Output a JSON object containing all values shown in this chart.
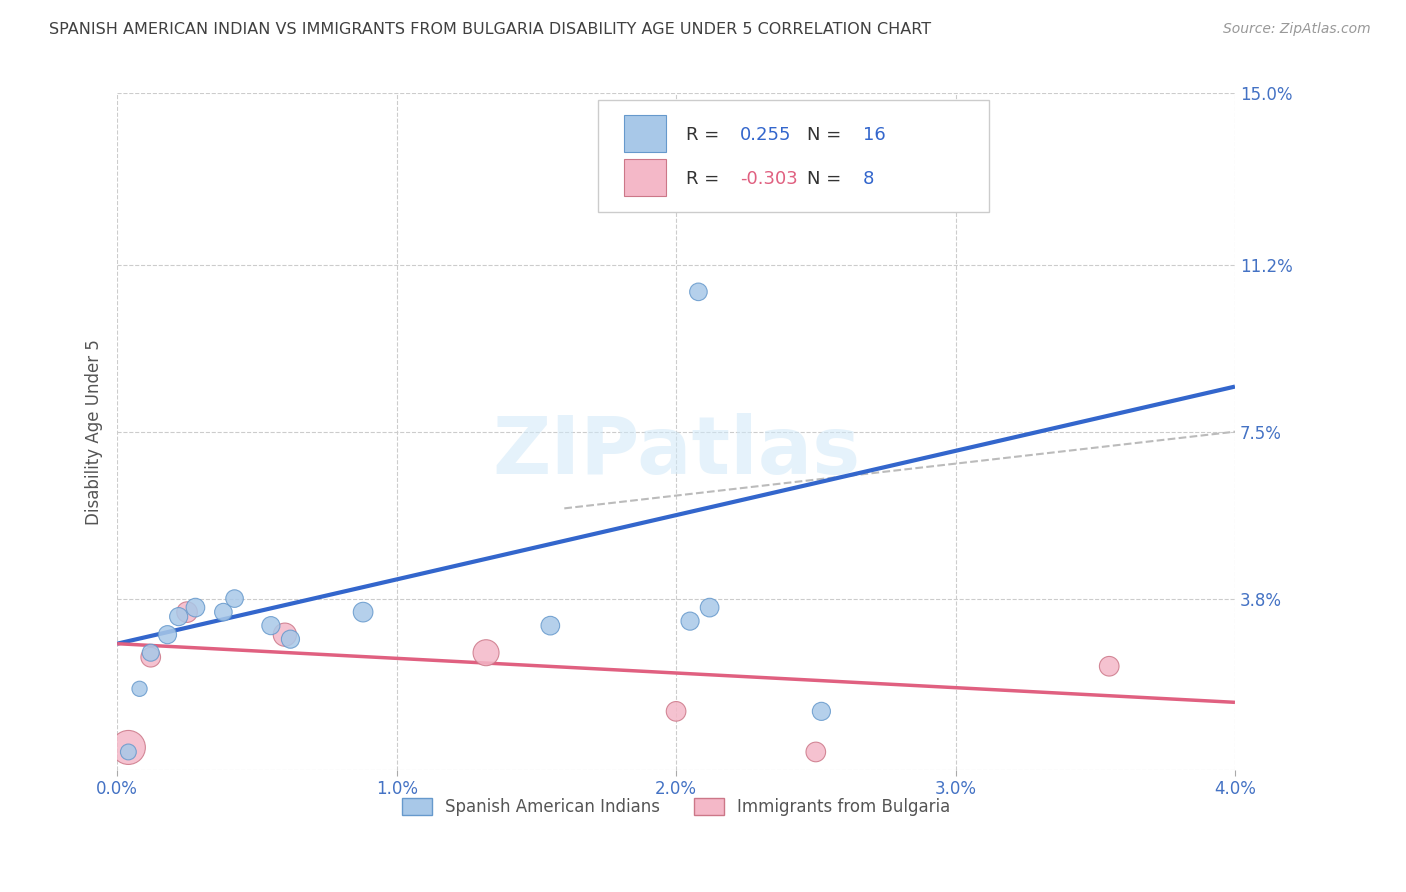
{
  "title": "SPANISH AMERICAN INDIAN VS IMMIGRANTS FROM BULGARIA DISABILITY AGE UNDER 5 CORRELATION CHART",
  "source": "Source: ZipAtlas.com",
  "ylabel": "Disability Age Under 5",
  "xlim": [
    0.0,
    4.0
  ],
  "ylim": [
    0.0,
    15.0
  ],
  "ytick_values": [
    0.0,
    3.8,
    7.5,
    11.2,
    15.0
  ],
  "ytick_labels": [
    "",
    "3.8%",
    "7.5%",
    "11.2%",
    "15.0%"
  ],
  "xtick_values": [
    0.0,
    1.0,
    2.0,
    3.0,
    4.0
  ],
  "xtick_labels": [
    "0.0%",
    "1.0%",
    "2.0%",
    "3.0%",
    "4.0%"
  ],
  "blue_scatter_x": [
    0.04,
    0.08,
    0.12,
    0.18,
    0.22,
    0.28,
    0.38,
    0.42,
    0.55,
    0.62,
    0.88,
    1.55,
    2.05,
    2.12,
    2.52,
    2.08
  ],
  "blue_scatter_y": [
    0.4,
    1.8,
    2.6,
    3.0,
    3.4,
    3.6,
    3.5,
    3.8,
    3.2,
    2.9,
    3.5,
    3.2,
    3.3,
    3.6,
    1.3,
    10.6
  ],
  "blue_scatter_size": [
    130,
    120,
    150,
    170,
    170,
    180,
    160,
    160,
    170,
    170,
    200,
    180,
    170,
    180,
    170,
    160
  ],
  "pink_scatter_x": [
    0.04,
    0.12,
    0.25,
    0.6,
    1.32,
    2.0,
    2.5,
    3.55
  ],
  "pink_scatter_y": [
    0.5,
    2.5,
    3.5,
    3.0,
    2.6,
    1.3,
    0.4,
    2.3
  ],
  "pink_scatter_size": [
    600,
    200,
    220,
    280,
    350,
    200,
    200,
    200
  ],
  "blue_line_x": [
    0.0,
    4.0
  ],
  "blue_line_y": [
    2.8,
    8.5
  ],
  "pink_line_x": [
    0.0,
    4.0
  ],
  "pink_line_y": [
    2.8,
    1.5
  ],
  "dashed_line_x": [
    1.6,
    4.0
  ],
  "dashed_line_y": [
    5.8,
    7.5
  ],
  "blue_scatter_color": "#A8C8E8",
  "blue_line_color": "#3366CC",
  "pink_scatter_color": "#F4B8C8",
  "pink_line_color": "#E06080",
  "dashed_color": "#BBBBBB",
  "r_blue": "0.255",
  "n_blue": "16",
  "r_pink": "-0.303",
  "n_pink": "8",
  "legend_label_blue": "Spanish American Indians",
  "legend_label_pink": "Immigrants from Bulgaria",
  "watermark_text": "ZIPatlas",
  "background_color": "#FFFFFF",
  "grid_color": "#CCCCCC",
  "title_color": "#404040",
  "axis_tick_color": "#4472C4",
  "right_tick_color": "#4472C4"
}
